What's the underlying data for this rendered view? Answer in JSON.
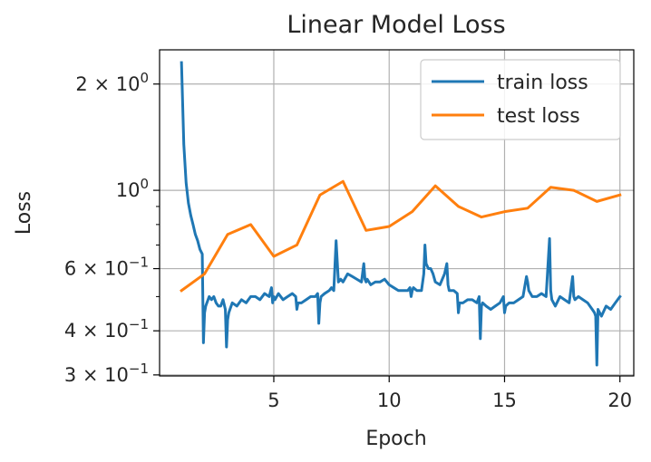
{
  "chart_data": {
    "type": "line",
    "title": "Linear Model Loss",
    "xlabel": "Epoch",
    "ylabel": "Loss",
    "xlim": [
      0.05,
      20.6
    ],
    "ylim": [
      0.298,
      2.5
    ],
    "yscale": "log",
    "grid": true,
    "legend_position": "upper right",
    "x_ticks": [
      {
        "value": 5,
        "label": "5"
      },
      {
        "value": 10,
        "label": "10"
      },
      {
        "value": 15,
        "label": "15"
      },
      {
        "value": 20,
        "label": "20"
      }
    ],
    "y_ticks": [
      {
        "value": 0.3,
        "mant": "3",
        "exp": "−1"
      },
      {
        "value": 0.4,
        "mant": "4",
        "exp": "−1"
      },
      {
        "value": 0.6,
        "mant": "6",
        "exp": "−1"
      },
      {
        "value": 1.0,
        "mant": "",
        "exp": "0"
      },
      {
        "value": 2.0,
        "mant": "2",
        "exp": "0"
      }
    ],
    "y_minor_ticks": [
      0.5,
      0.7,
      0.8,
      0.9
    ],
    "series": [
      {
        "name": "train loss",
        "color": "#1f77b4",
        "x": [
          1.0,
          1.1,
          1.2,
          1.3,
          1.4,
          1.5,
          1.6,
          1.7,
          1.8,
          1.9,
          1.95,
          2.0,
          2.05,
          2.1,
          2.2,
          2.3,
          2.4,
          2.5,
          2.6,
          2.7,
          2.8,
          2.9,
          2.95,
          3.0,
          3.05,
          3.1,
          3.2,
          3.4,
          3.6,
          3.8,
          4.0,
          4.2,
          4.4,
          4.6,
          4.8,
          4.9,
          4.95,
          5.0,
          5.05,
          5.2,
          5.4,
          5.6,
          5.8,
          5.95,
          6.0,
          6.05,
          6.2,
          6.4,
          6.6,
          6.8,
          6.9,
          6.95,
          7.0,
          7.05,
          7.2,
          7.4,
          7.5,
          7.6,
          7.7,
          7.8,
          7.9,
          8.0,
          8.2,
          8.4,
          8.6,
          8.8,
          8.9,
          8.95,
          9.0,
          9.05,
          9.2,
          9.4,
          9.6,
          9.8,
          10.0,
          10.2,
          10.4,
          10.6,
          10.8,
          10.9,
          10.95,
          11.0,
          11.05,
          11.2,
          11.4,
          11.5,
          11.55,
          11.6,
          11.7,
          11.8,
          11.9,
          12.0,
          12.2,
          12.4,
          12.5,
          12.55,
          12.6,
          12.8,
          12.95,
          13.0,
          13.05,
          13.2,
          13.4,
          13.6,
          13.8,
          13.9,
          13.95,
          14.0,
          14.05,
          14.2,
          14.4,
          14.6,
          14.8,
          14.95,
          15.0,
          15.05,
          15.2,
          15.4,
          15.6,
          15.8,
          15.95,
          16.0,
          16.05,
          16.2,
          16.4,
          16.6,
          16.8,
          16.95,
          17.0,
          17.05,
          17.2,
          17.4,
          17.6,
          17.8,
          17.95,
          18.0,
          18.05,
          18.2,
          18.4,
          18.6,
          18.8,
          18.9,
          18.95,
          19.0,
          19.05,
          19.2,
          19.4,
          19.6,
          19.8,
          20.0
        ],
        "values": [
          2.3,
          1.35,
          1.05,
          0.92,
          0.85,
          0.8,
          0.75,
          0.72,
          0.68,
          0.66,
          0.37,
          0.45,
          0.47,
          0.48,
          0.5,
          0.49,
          0.5,
          0.48,
          0.47,
          0.47,
          0.49,
          0.46,
          0.36,
          0.43,
          0.45,
          0.46,
          0.48,
          0.47,
          0.49,
          0.48,
          0.5,
          0.5,
          0.49,
          0.51,
          0.5,
          0.53,
          0.48,
          0.5,
          0.49,
          0.51,
          0.49,
          0.5,
          0.51,
          0.5,
          0.46,
          0.48,
          0.48,
          0.49,
          0.5,
          0.5,
          0.51,
          0.42,
          0.48,
          0.5,
          0.51,
          0.52,
          0.53,
          0.52,
          0.72,
          0.55,
          0.56,
          0.55,
          0.58,
          0.57,
          0.56,
          0.55,
          0.62,
          0.56,
          0.55,
          0.56,
          0.54,
          0.55,
          0.55,
          0.56,
          0.54,
          0.53,
          0.52,
          0.52,
          0.52,
          0.53,
          0.5,
          0.52,
          0.53,
          0.52,
          0.52,
          0.58,
          0.7,
          0.62,
          0.6,
          0.6,
          0.58,
          0.55,
          0.54,
          0.58,
          0.62,
          0.54,
          0.52,
          0.52,
          0.51,
          0.45,
          0.48,
          0.48,
          0.49,
          0.49,
          0.48,
          0.5,
          0.38,
          0.47,
          0.48,
          0.47,
          0.46,
          0.47,
          0.48,
          0.5,
          0.45,
          0.47,
          0.48,
          0.48,
          0.49,
          0.5,
          0.57,
          0.55,
          0.52,
          0.5,
          0.5,
          0.51,
          0.5,
          0.73,
          0.52,
          0.49,
          0.47,
          0.5,
          0.49,
          0.48,
          0.57,
          0.5,
          0.49,
          0.5,
          0.49,
          0.48,
          0.46,
          0.45,
          0.44,
          0.32,
          0.46,
          0.44,
          0.47,
          0.46,
          0.48,
          0.5
        ]
      },
      {
        "name": "test loss",
        "color": "#ff7f0e",
        "x": [
          1,
          2,
          3,
          4,
          5,
          6,
          7,
          8,
          9,
          10,
          11,
          12,
          13,
          14,
          15,
          16,
          17,
          18,
          19,
          20
        ],
        "values": [
          0.52,
          0.58,
          0.75,
          0.8,
          0.65,
          0.7,
          0.97,
          1.06,
          0.77,
          0.79,
          0.87,
          1.03,
          0.9,
          0.84,
          0.87,
          0.89,
          1.02,
          1.0,
          0.93,
          0.97
        ]
      }
    ]
  }
}
